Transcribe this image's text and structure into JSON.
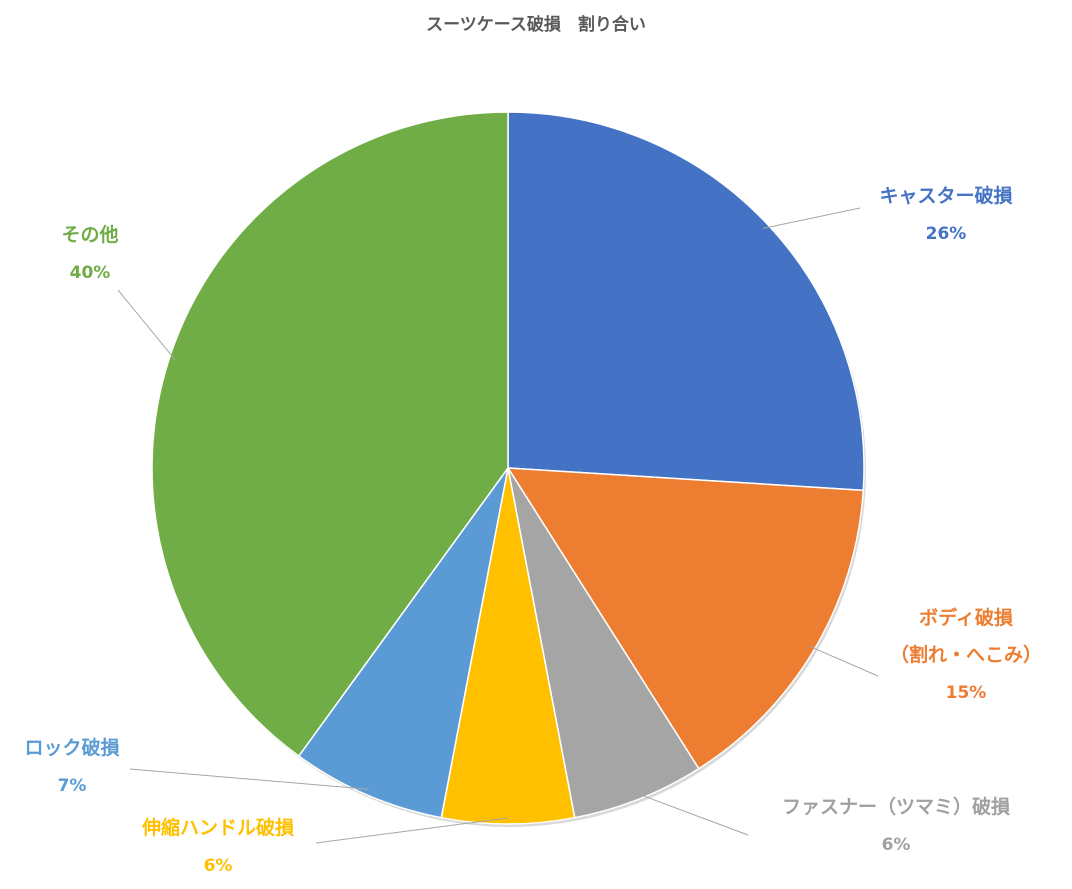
{
  "chart_data": {
    "type": "pie",
    "title": "スーツケース破損　割り合い",
    "slices": [
      {
        "label_lines": [
          "キャスター破損"
        ],
        "value_label": "26%",
        "value": 26,
        "color": "#4472C4"
      },
      {
        "label_lines": [
          "ボディ破損",
          "（割れ・へこみ）"
        ],
        "value_label": "15%",
        "value": 15,
        "color": "#ED7D31"
      },
      {
        "label_lines": [
          "ファスナー（ツマミ）破損"
        ],
        "value_label": "6%",
        "value": 6,
        "color": "#A5A5A5"
      },
      {
        "label_lines": [
          "伸縮ハンドル破損"
        ],
        "value_label": "6%",
        "value": 6,
        "color": "#FFC000"
      },
      {
        "label_lines": [
          "ロック破損"
        ],
        "value_label": "7%",
        "value": 7,
        "color": "#5B9BD5"
      },
      {
        "label_lines": [
          "その他"
        ],
        "value_label": "40%",
        "value": 40,
        "color": "#70AD47"
      }
    ],
    "legend": "none"
  }
}
